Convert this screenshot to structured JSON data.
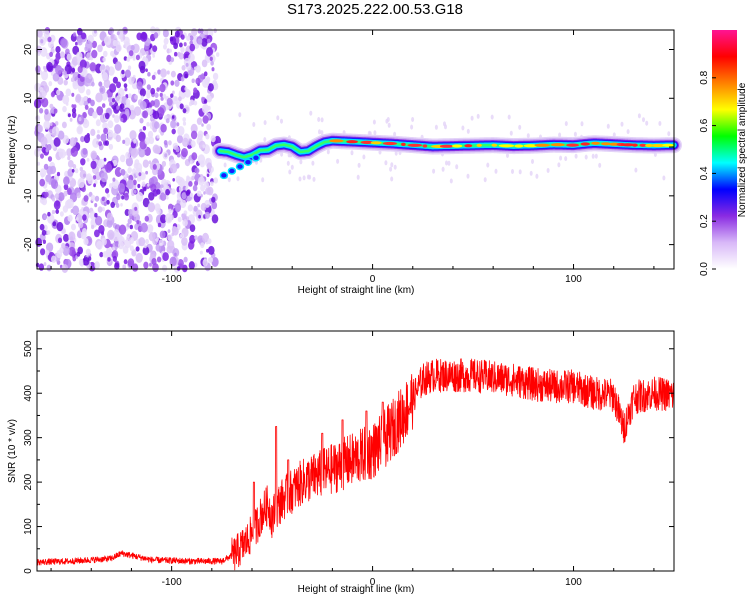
{
  "title": "S173.2025.222.00.53.G18",
  "chart_data": [
    {
      "type": "heatmap",
      "xlabel": "Height of straight line (km)",
      "ylabel": "Frequency (Hz)",
      "xlim": [
        -167,
        150
      ],
      "ylim": [
        -25,
        24
      ],
      "xticks": [
        -100,
        0,
        100
      ],
      "yticks": [
        -20,
        -10,
        0,
        10,
        20
      ],
      "noise_region_x": [
        -167,
        -78
      ],
      "ridge": {
        "x": [
          -76,
          -72,
          -68,
          -64,
          -60,
          -56,
          -52,
          -48,
          -44,
          -40,
          -36,
          -32,
          -28,
          -24,
          -20,
          -10,
          0,
          10,
          20,
          30,
          40,
          50,
          60,
          70,
          80,
          90,
          100,
          110,
          120,
          130,
          140,
          150
        ],
        "freq": [
          -0.8,
          -1.0,
          -1.6,
          -2.1,
          -1.6,
          -0.7,
          -0.6,
          0.3,
          0.5,
          0.1,
          -1.0,
          -0.8,
          0.2,
          1.0,
          1.3,
          1.1,
          0.9,
          0.7,
          0.4,
          0.1,
          0.2,
          0.3,
          0.4,
          0.2,
          0.3,
          0.5,
          0.4,
          0.8,
          0.6,
          0.4,
          0.3,
          0.4
        ]
      },
      "colorbar": {
        "label": "Normalized spectral amplitude",
        "range": [
          0.0,
          1.0
        ],
        "ticks": [
          "0.0",
          "0.2",
          "0.4",
          "0.6",
          "0.8"
        ],
        "colors": [
          "#ffffff",
          "#d8b8f8",
          "#8a2be2",
          "#0000ff",
          "#00ffff",
          "#00ff00",
          "#ffff00",
          "#ff8000",
          "#ff0000",
          "#ff1493"
        ]
      }
    },
    {
      "type": "line",
      "xlabel": "Height of straight line (km)",
      "ylabel": "SNR (10 * v/v)",
      "xlim": [
        -167,
        150
      ],
      "ylim": [
        0,
        540
      ],
      "xticks": [
        -100,
        0,
        100
      ],
      "yticks": [
        0,
        100,
        200,
        300,
        400,
        500
      ],
      "color": "#ff0000",
      "x": [
        -167,
        -150,
        -130,
        -125,
        -110,
        -90,
        -75,
        -68,
        -62,
        -58,
        -55,
        -52,
        -50,
        -48,
        -45,
        -40,
        -35,
        -30,
        -25,
        -20,
        -15,
        -10,
        -5,
        0,
        5,
        10,
        15,
        20,
        25,
        30,
        40,
        50,
        60,
        70,
        80,
        90,
        100,
        110,
        120,
        125,
        130,
        140,
        150
      ],
      "y": [
        20,
        22,
        28,
        40,
        25,
        22,
        22,
        40,
        70,
        100,
        130,
        150,
        120,
        140,
        160,
        180,
        200,
        210,
        220,
        230,
        240,
        250,
        260,
        270,
        290,
        320,
        350,
        390,
        430,
        440,
        440,
        440,
        435,
        430,
        420,
        415,
        415,
        400,
        395,
        320,
        390,
        400,
        395
      ],
      "peaks": [
        [
          -59,
          200
        ],
        [
          -48,
          325
        ],
        [
          -42,
          250
        ],
        [
          -25,
          310
        ],
        [
          -15,
          340
        ],
        [
          -3,
          360
        ],
        [
          5,
          380
        ]
      ]
    }
  ]
}
